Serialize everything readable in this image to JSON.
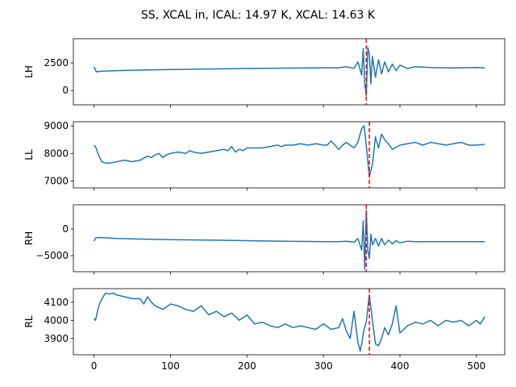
{
  "figure": {
    "title": "SS, XCAL in, ICAL: 14.97 K, XCAL: 14.63 K"
  },
  "chart_data": {
    "type": "line",
    "title": "SS, XCAL in, ICAL: 14.97 K, XCAL: 14.63 K",
    "shared_x": {
      "range": [
        -27,
        537
      ],
      "ticks": [
        0,
        100,
        200,
        300,
        400,
        500
      ],
      "tick_labels": [
        "0",
        "100",
        "200",
        "300",
        "400",
        "500"
      ]
    },
    "line_color": "#1f77b4",
    "marker_color": "#ff0000",
    "panels": [
      {
        "ylabel": "LH",
        "ylim": [
          -1300,
          4700
        ],
        "yticks": [
          0,
          2500
        ],
        "ytick_labels": [
          "0",
          "2500"
        ],
        "marker_x": 356,
        "series": {
          "x": [
            0,
            3,
            10,
            30,
            60,
            100,
            150,
            200,
            250,
            280,
            300,
            320,
            330,
            340,
            345,
            350,
            352,
            354,
            356,
            358,
            360,
            362,
            364,
            368,
            372,
            376,
            380,
            385,
            390,
            395,
            400,
            410,
            420,
            440,
            470,
            500,
            511
          ],
          "y": [
            2150,
            1700,
            1750,
            1800,
            1850,
            1900,
            1950,
            2000,
            2030,
            2050,
            2060,
            2060,
            2150,
            2000,
            2600,
            1400,
            3800,
            600,
            -500,
            3900,
            3300,
            600,
            3100,
            1200,
            2800,
            1500,
            2600,
            1700,
            2400,
            1800,
            2300,
            2000,
            2150,
            2080,
            2050,
            2080,
            2050
          ]
        }
      },
      {
        "ylabel": "LL",
        "ylim": [
          6750,
          9150
        ],
        "yticks": [
          7000,
          8000,
          9000
        ],
        "ytick_labels": [
          "7000",
          "8000",
          "9000"
        ],
        "marker_x": 360,
        "series": {
          "x": [
            0,
            2,
            5,
            10,
            15,
            20,
            30,
            40,
            50,
            60,
            70,
            75,
            80,
            85,
            90,
            95,
            100,
            110,
            120,
            125,
            130,
            140,
            150,
            160,
            170,
            175,
            180,
            185,
            190,
            195,
            200,
            210,
            220,
            230,
            240,
            245,
            250,
            260,
            270,
            280,
            290,
            300,
            305,
            310,
            320,
            325,
            330,
            340,
            345,
            350,
            353,
            356,
            360,
            364,
            368,
            372,
            376,
            380,
            385,
            390,
            400,
            410,
            420,
            430,
            440,
            450,
            460,
            470,
            480,
            490,
            500,
            511
          ],
          "y": [
            8300,
            8250,
            8000,
            7700,
            7650,
            7650,
            7700,
            7750,
            7700,
            7750,
            7900,
            7850,
            7950,
            8000,
            7850,
            7950,
            8000,
            8050,
            8000,
            8100,
            8050,
            8000,
            8050,
            8100,
            8150,
            8100,
            8250,
            8050,
            8150,
            8100,
            8200,
            8200,
            8200,
            8250,
            8300,
            8250,
            8300,
            8300,
            8350,
            8300,
            8350,
            8300,
            8300,
            8450,
            8150,
            8300,
            8400,
            8200,
            8400,
            8900,
            9000,
            8300,
            7150,
            7600,
            8600,
            8200,
            8700,
            8500,
            8350,
            8150,
            8300,
            8350,
            8400,
            8300,
            8400,
            8350,
            8300,
            8350,
            8400,
            8300,
            8300,
            8330
          ]
        }
      },
      {
        "ylabel": "RH",
        "ylim": [
          -8000,
          4500
        ],
        "yticks": [
          -5000,
          0
        ],
        "ytick_labels": [
          "−5000",
          "0"
        ],
        "marker_x": 356,
        "series": {
          "x": [
            0,
            2,
            5,
            30,
            60,
            100,
            150,
            200,
            250,
            280,
            300,
            320,
            330,
            340,
            345,
            350,
            352,
            354,
            356,
            358,
            360,
            362,
            364,
            368,
            372,
            376,
            380,
            385,
            390,
            395,
            400,
            410,
            420,
            440,
            470,
            500,
            511
          ],
          "y": [
            -2300,
            -1700,
            -1600,
            -1800,
            -1900,
            -2000,
            -2100,
            -2200,
            -2300,
            -2350,
            -2400,
            -2400,
            -2300,
            -2500,
            -1800,
            -4000,
            1500,
            -7500,
            3500,
            -4000,
            -5500,
            -1000,
            -3000,
            -1800,
            -3200,
            -1800,
            -3000,
            -2100,
            -2800,
            -2200,
            -2600,
            -2300,
            -2400,
            -2400,
            -2400,
            -2400,
            -2380
          ]
        }
      },
      {
        "ylabel": "RL",
        "ylim": [
          3810,
          4175
        ],
        "yticks": [
          3900,
          4000,
          4100
        ],
        "ytick_labels": [
          "3900",
          "4000",
          "4100"
        ],
        "marker_x": 360,
        "series": {
          "x": [
            0,
            2,
            5,
            8,
            12,
            15,
            20,
            25,
            30,
            40,
            50,
            60,
            65,
            70,
            75,
            80,
            90,
            100,
            110,
            120,
            130,
            140,
            150,
            160,
            170,
            180,
            190,
            200,
            210,
            220,
            230,
            240,
            250,
            260,
            270,
            280,
            290,
            300,
            310,
            320,
            325,
            330,
            335,
            340,
            345,
            348,
            350,
            353,
            356,
            360,
            364,
            368,
            372,
            376,
            380,
            385,
            390,
            395,
            400,
            410,
            420,
            430,
            440,
            450,
            460,
            470,
            480,
            490,
            500,
            505,
            511
          ],
          "y": [
            4010,
            4000,
            4060,
            4100,
            4130,
            4150,
            4145,
            4150,
            4140,
            4130,
            4120,
            4120,
            4090,
            4130,
            4100,
            4080,
            4060,
            4090,
            4080,
            4060,
            4050,
            4080,
            4030,
            4050,
            4020,
            4040,
            4000,
            4030,
            3980,
            3990,
            3970,
            3960,
            3980,
            3960,
            3970,
            3960,
            3950,
            3980,
            3950,
            3960,
            4010,
            3940,
            3900,
            4050,
            3880,
            3830,
            3870,
            3950,
            3990,
            4140,
            4000,
            3870,
            3860,
            3900,
            3960,
            3920,
            3980,
            4080,
            3930,
            3970,
            3990,
            3980,
            4000,
            3970,
            4000,
            3990,
            4000,
            3970,
            4000,
            3980,
            4020
          ]
        }
      }
    ]
  }
}
